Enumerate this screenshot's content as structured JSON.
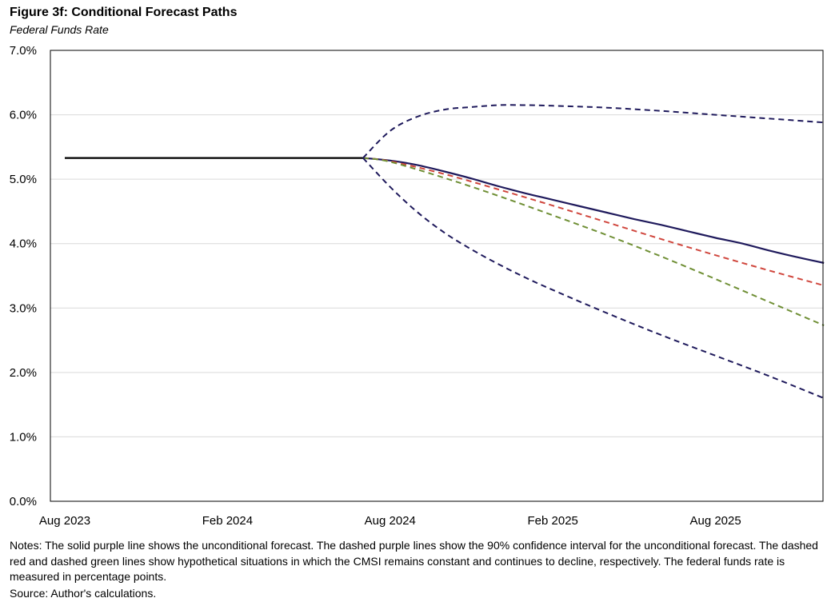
{
  "title": "Figure 3f: Conditional Forecast Paths",
  "subtitle": "Federal Funds Rate",
  "notes": "Notes: The solid purple line shows the unconditional forecast. The dashed purple lines show the 90% confidence interval for the unconditional forecast. The dashed red and dashed green lines show hypothetical situations in which the CMSI remains constant and continues to decline, respectively. The federal funds rate is measured in percentage points.",
  "source": "Source: Author's calculations.",
  "chart_data": {
    "type": "line",
    "title": "Figure 3f: Conditional Forecast Paths",
    "subtitle": "Federal Funds Rate",
    "xlabel": "",
    "ylabel": "",
    "x_range": [
      "2023-08",
      "2025-12"
    ],
    "ylim": [
      0,
      7
    ],
    "y_ticks": [
      0,
      1,
      2,
      3,
      4,
      5,
      6,
      7
    ],
    "y_tick_labels": [
      "0.0%",
      "1.0%",
      "2.0%",
      "3.0%",
      "4.0%",
      "5.0%",
      "6.0%",
      "7.0%"
    ],
    "x_ticks": [
      "2023-08",
      "2024-02",
      "2024-08",
      "2025-02",
      "2025-08"
    ],
    "x_tick_labels": [
      "Aug 2023",
      "Feb 2024",
      "Aug 2024",
      "Feb 2025",
      "Aug 2025"
    ],
    "grid": "horizontal",
    "legend": "none",
    "series": [
      {
        "style": "solid",
        "color": "#000000",
        "x": [
          "2023-08",
          "2024-07"
        ],
        "values": [
          5.33,
          5.33
        ]
      },
      {
        "style": "solid",
        "color": "#1f1a5c",
        "x": [
          "2024-07",
          "2024-08",
          "2024-09",
          "2024-10",
          "2024-11",
          "2024-12",
          "2025-01",
          "2025-02",
          "2025-03",
          "2025-04",
          "2025-05",
          "2025-06",
          "2025-07",
          "2025-08",
          "2025-09",
          "2025-10",
          "2025-11",
          "2025-12"
        ],
        "values": [
          5.33,
          5.29,
          5.22,
          5.12,
          5.01,
          4.89,
          4.78,
          4.68,
          4.58,
          4.48,
          4.38,
          4.29,
          4.19,
          4.09,
          4.0,
          3.89,
          3.79,
          3.7
        ]
      },
      {
        "style": "dashed",
        "color": "#d0463d",
        "x": [
          "2024-07",
          "2024-08",
          "2024-10",
          "2024-12",
          "2025-02",
          "2025-04",
          "2025-06",
          "2025-08",
          "2025-10",
          "2025-12"
        ],
        "values": [
          5.33,
          5.28,
          5.08,
          4.84,
          4.59,
          4.33,
          4.07,
          3.82,
          3.58,
          3.35
        ]
      },
      {
        "style": "dashed",
        "color": "#6f8f35",
        "x": [
          "2024-07",
          "2024-08",
          "2024-10",
          "2024-12",
          "2025-02",
          "2025-04",
          "2025-06",
          "2025-08",
          "2025-10",
          "2025-12"
        ],
        "values": [
          5.33,
          5.27,
          5.02,
          4.74,
          4.44,
          4.13,
          3.8,
          3.45,
          3.09,
          2.73
        ]
      },
      {
        "style": "dashed",
        "color": "#1f1a5c",
        "x": [
          "2024-07",
          "2024-08",
          "2024-09",
          "2024-10",
          "2024-11",
          "2024-12",
          "2025-01",
          "2025-02",
          "2025-04",
          "2025-06",
          "2025-08",
          "2025-10",
          "2025-12"
        ],
        "values": [
          5.33,
          5.75,
          5.97,
          6.08,
          6.12,
          6.15,
          6.15,
          6.14,
          6.11,
          6.06,
          6.0,
          5.94,
          5.88
        ]
      },
      {
        "style": "dashed",
        "color": "#1f1a5c",
        "x": [
          "2024-07",
          "2024-08",
          "2024-09",
          "2024-10",
          "2024-11",
          "2024-12",
          "2025-01",
          "2025-02",
          "2025-04",
          "2025-06",
          "2025-08",
          "2025-10",
          "2025-12"
        ],
        "values": [
          5.33,
          4.88,
          4.49,
          4.17,
          3.91,
          3.68,
          3.47,
          3.28,
          2.92,
          2.58,
          2.26,
          1.94,
          1.6
        ]
      }
    ]
  }
}
